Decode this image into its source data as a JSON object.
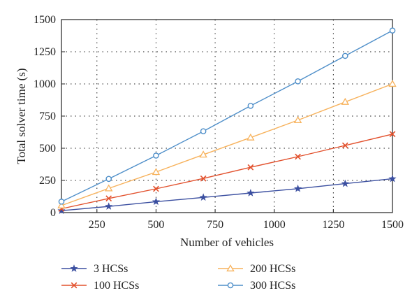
{
  "chart_data": {
    "type": "line",
    "title": "",
    "xlabel": "Number of vehicles",
    "ylabel": "Total solver time (s)",
    "xlim": [
      100,
      1500
    ],
    "ylim": [
      0,
      1500
    ],
    "xticks": [
      250,
      500,
      750,
      1000,
      1250,
      1500
    ],
    "yticks": [
      0,
      250,
      500,
      750,
      1000,
      1250,
      1500
    ],
    "grid": true,
    "legend_position": "bottom",
    "x": [
      100,
      300,
      500,
      700,
      900,
      1100,
      1300,
      1500
    ],
    "series": [
      {
        "name": "3 HCSs",
        "color": "#3b4fa0",
        "marker": "star",
        "values": [
          15,
          48,
          85,
          118,
          152,
          186,
          225,
          263
        ]
      },
      {
        "name": "100 HCSs",
        "color": "#e2502c",
        "marker": "x",
        "values": [
          30,
          110,
          185,
          265,
          352,
          435,
          522,
          610
        ]
      },
      {
        "name": "200 HCSs",
        "color": "#f7b25c",
        "marker": "triangle",
        "values": [
          55,
          188,
          315,
          450,
          583,
          718,
          860,
          1000
        ]
      },
      {
        "name": "300 HCSs",
        "color": "#4f8fc9",
        "marker": "circle",
        "values": [
          85,
          262,
          443,
          632,
          830,
          1020,
          1218,
          1415
        ]
      }
    ]
  }
}
